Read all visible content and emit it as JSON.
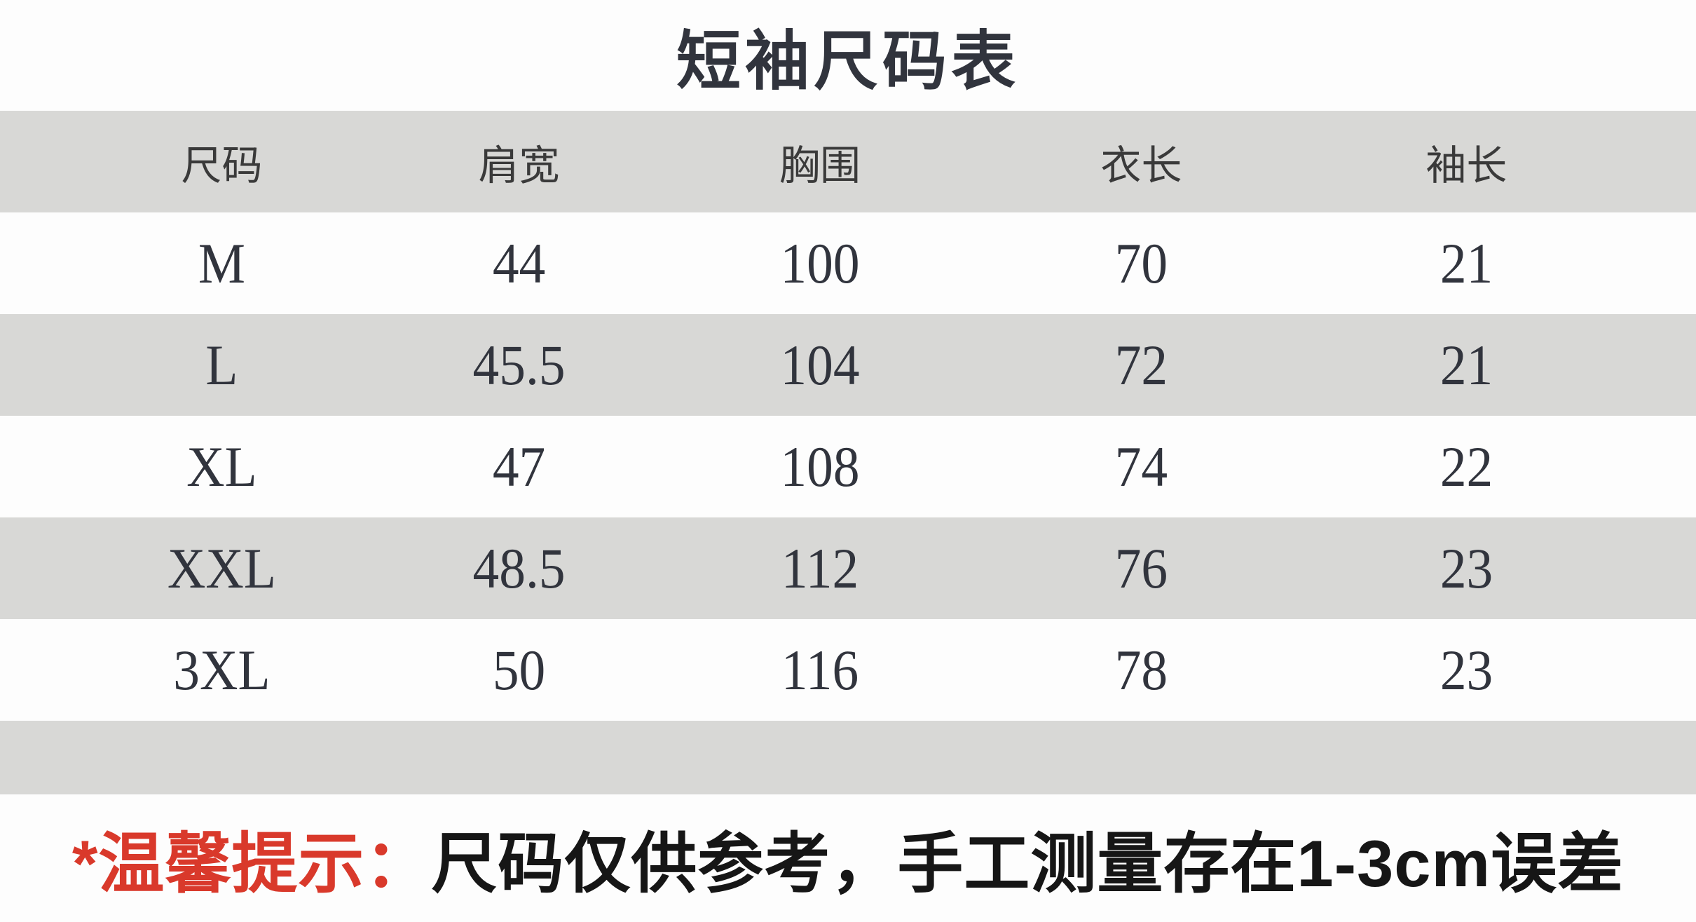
{
  "title": "短袖尺码表",
  "table": {
    "headers": [
      "尺码",
      "肩宽",
      "胸围",
      "衣长",
      "袖长"
    ],
    "rows": [
      [
        "M",
        "44",
        "100",
        "70",
        "21"
      ],
      [
        "L",
        "45.5",
        "104",
        "72",
        "21"
      ],
      [
        "XL",
        "47",
        "108",
        "74",
        "22"
      ],
      [
        "XXL",
        "48.5",
        "112",
        "76",
        "23"
      ],
      [
        "3XL",
        "50",
        "116",
        "78",
        "23"
      ]
    ]
  },
  "note": {
    "prefix": "*温馨提示：",
    "text": "尺码仅供参考，手工测量存在1-3cm误差"
  },
  "colors": {
    "band": "#d8d8d6",
    "ink": "#31343d",
    "header-ink": "#3a3a3a",
    "note-ink": "#161616",
    "red": "#d9392b",
    "bg": "#fdfdfd"
  },
  "chart_data": {
    "type": "table",
    "title": "短袖尺码表",
    "columns": [
      "尺码",
      "肩宽",
      "胸围",
      "衣长",
      "袖长"
    ],
    "rows": [
      [
        "M",
        44,
        100,
        70,
        21
      ],
      [
        "L",
        45.5,
        104,
        72,
        21
      ],
      [
        "XL",
        47,
        108,
        74,
        22
      ],
      [
        "XXL",
        48.5,
        112,
        76,
        23
      ],
      [
        "3XL",
        50,
        116,
        78,
        23
      ]
    ],
    "units": "cm",
    "layout_hints": {
      "striped_rows": true,
      "stripe_color": "#d8d8d6",
      "header_background": "#d8d8d6",
      "note_accent_color": "#d9392b"
    },
    "annotations": [
      "*温馨提示：尺码仅供参考，手工测量存在1-3cm误差"
    ]
  }
}
